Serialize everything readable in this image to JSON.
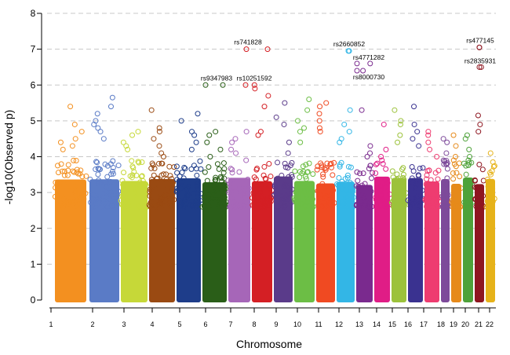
{
  "chart_data": {
    "type": "scatter",
    "subtype": "manhattan",
    "title": "",
    "xlabel": "Chromosome",
    "ylabel": "-log10(Observed p)",
    "ylim": [
      0,
      8
    ],
    "yticks": [
      0,
      1,
      2,
      3,
      4,
      5,
      6,
      7,
      8
    ],
    "grid": true,
    "chromosomes": [
      {
        "label": "1",
        "color": "#f39020",
        "top_values": [
          5.4,
          4.9,
          4.7,
          4.5,
          4.4,
          4.3,
          4.2
        ]
      },
      {
        "label": "2",
        "color": "#5a7bc6",
        "top_values": [
          5.65,
          5.4,
          5.2,
          5.0,
          4.9,
          4.8,
          4.7,
          4.5
        ]
      },
      {
        "label": "3",
        "color": "#c6d838",
        "top_values": [
          4.7,
          4.6,
          4.4,
          4.3,
          4.2
        ]
      },
      {
        "label": "4",
        "color": "#9a4a12",
        "top_values": [
          5.3,
          4.8,
          4.7,
          4.5,
          4.3,
          4.1,
          4.0
        ]
      },
      {
        "label": "5",
        "color": "#1e3d8a",
        "top_values": [
          5.2,
          5.0,
          4.7,
          4.6,
          4.4,
          4.2
        ]
      },
      {
        "label": "6",
        "color": "#2a5e18",
        "top_values": [
          6.0,
          4.7,
          4.6,
          4.4,
          4.2,
          4.0
        ]
      },
      {
        "label": "7",
        "color": "#a666b8",
        "top_values": [
          4.7,
          4.5,
          4.4,
          4.2,
          4.1,
          3.9
        ]
      },
      {
        "label": "8",
        "color": "#d41f24",
        "top_values": [
          7.0,
          6.0,
          5.9,
          5.7,
          5.4,
          4.7,
          4.6
        ]
      },
      {
        "label": "9",
        "color": "#5a3b8a",
        "top_values": [
          5.5,
          5.1,
          4.9,
          4.4,
          4.1
        ]
      },
      {
        "label": "10",
        "color": "#6cbe45",
        "top_values": [
          5.6,
          5.3,
          5.0,
          4.8,
          4.7,
          4.4
        ]
      },
      {
        "label": "11",
        "color": "#f04a22",
        "top_values": [
          5.5,
          5.4,
          5.2,
          5.0,
          4.8,
          4.7
        ]
      },
      {
        "label": "12",
        "color": "#33b6e6",
        "top_values": [
          6.95,
          5.3,
          4.9,
          4.7,
          4.5,
          4.4
        ]
      },
      {
        "label": "13",
        "color": "#7a2a8e",
        "top_values": [
          6.6,
          6.4,
          5.3,
          4.3,
          4.1,
          4.0
        ]
      },
      {
        "label": "14",
        "color": "#e01d86",
        "top_values": [
          4.9,
          4.2,
          4.0,
          3.9,
          3.8
        ]
      },
      {
        "label": "15",
        "color": "#9cc23b",
        "top_values": [
          5.3,
          5.0,
          4.9,
          4.6,
          4.4
        ]
      },
      {
        "label": "16",
        "color": "#3a3290",
        "top_values": [
          5.4,
          4.9,
          4.7,
          4.5,
          4.3
        ]
      },
      {
        "label": "17",
        "color": "#ee3c70",
        "top_values": [
          4.7,
          4.6,
          4.4,
          4.2,
          4.0
        ]
      },
      {
        "label": "18",
        "color": "#7d4a9a",
        "top_values": [
          4.5,
          4.4,
          4.1,
          3.9,
          3.8
        ]
      },
      {
        "label": "19",
        "color": "#e68a1a",
        "top_values": [
          4.6,
          4.3,
          4.0,
          3.9
        ]
      },
      {
        "label": "20",
        "color": "#4ea23a",
        "top_values": [
          4.6,
          4.5,
          4.2,
          4.0,
          3.9
        ]
      },
      {
        "label": "21",
        "color": "#8e1620",
        "top_values": [
          7.05,
          6.5,
          5.15,
          4.9,
          4.7
        ]
      },
      {
        "label": "22",
        "color": "#e6b219",
        "top_values": [
          4.1,
          3.6,
          3.5,
          3.3
        ]
      }
    ],
    "annotations": [
      {
        "label": "rs741828",
        "chromosome": "8",
        "value": 7.0
      },
      {
        "label": "rs9347983",
        "chromosome": "6",
        "value": 6.0
      },
      {
        "label": "rs10251592",
        "chromosome": "8",
        "value": 6.0
      },
      {
        "label": "rs2660852",
        "chromosome": "12",
        "value": 6.95
      },
      {
        "label": "rs4771282",
        "chromosome": "13",
        "value": 6.6
      },
      {
        "label": "rs8000730",
        "chromosome": "13",
        "value": 6.4
      },
      {
        "label": "rs477145",
        "chromosome": "21",
        "value": 7.05
      },
      {
        "label": "rs2835931",
        "chromosome": "21",
        "value": 6.5
      }
    ]
  }
}
